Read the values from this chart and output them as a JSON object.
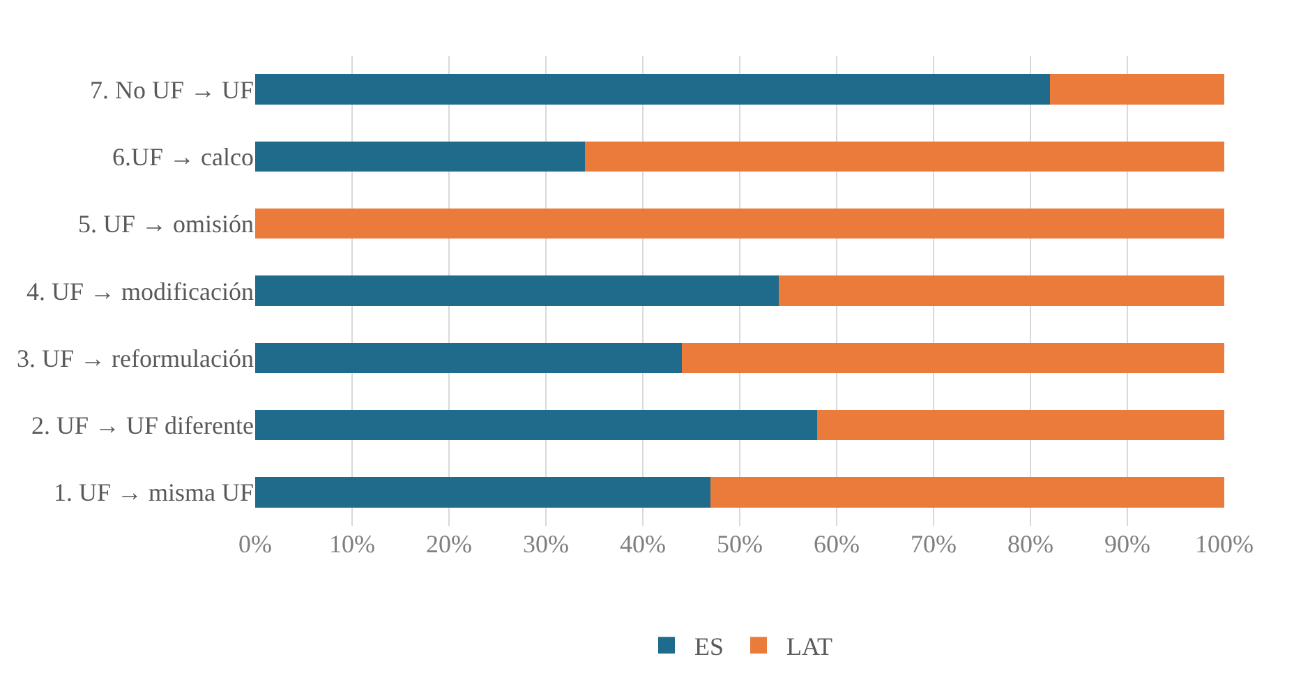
{
  "chart_data": {
    "type": "bar",
    "orientation": "horizontal",
    "stacked": true,
    "categories": [
      "7. No UF → UF",
      "6.UF → calco",
      "5. UF → omisión",
      "4. UF → modificación",
      "3. UF → reformulación",
      "2. UF → UF diferente",
      "1. UF → misma UF"
    ],
    "series": [
      {
        "name": "ES",
        "color": "#1f6b8c",
        "values": [
          82,
          34,
          0,
          54,
          44,
          58,
          47
        ]
      },
      {
        "name": "LAT",
        "color": "#eb7b3b",
        "values": [
          18,
          66,
          100,
          46,
          56,
          42,
          53
        ]
      }
    ],
    "xlim": [
      0,
      100
    ],
    "xticks": [
      {
        "value": 0,
        "label": "0%"
      },
      {
        "value": 10,
        "label": "10%"
      },
      {
        "value": 20,
        "label": "20%"
      },
      {
        "value": 30,
        "label": "30%"
      },
      {
        "value": 40,
        "label": "40%"
      },
      {
        "value": 50,
        "label": "50%"
      },
      {
        "value": 60,
        "label": "60%"
      },
      {
        "value": 70,
        "label": "70%"
      },
      {
        "value": 80,
        "label": "80%"
      },
      {
        "value": 90,
        "label": "90%"
      },
      {
        "value": 100,
        "label": "100%"
      }
    ],
    "grid": "x",
    "legend": "bottom"
  }
}
